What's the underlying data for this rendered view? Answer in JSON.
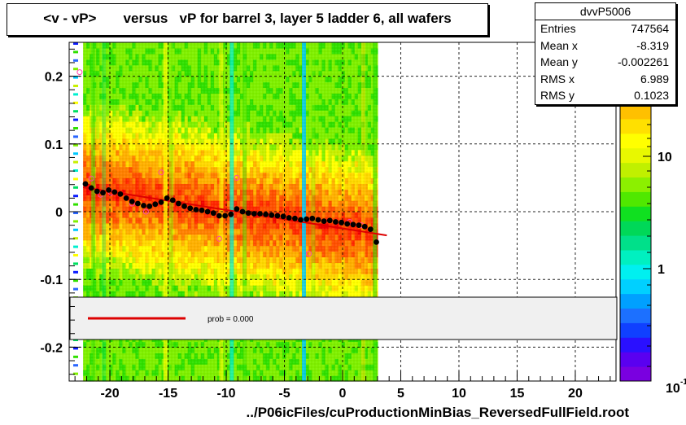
{
  "title": "<v - vP>       versus   vP for barrel 3, layer 5 ladder 6, all wafers",
  "stats": {
    "name": "dvvP5006",
    "rows": [
      {
        "label": "Entries",
        "value": "747564"
      },
      {
        "label": "Mean x",
        "value": "-8.319"
      },
      {
        "label": "Mean y",
        "value": "-0.002261"
      },
      {
        "label": "RMS x",
        "value": "6.989"
      },
      {
        "label": "RMS y",
        "value": "0.1023"
      }
    ]
  },
  "fit_legend": {
    "text": "prob = 0.000",
    "line_color": "#dd0000"
  },
  "colors": {
    "fit": "#dd0000",
    "profile": "#000000",
    "open_markers": "#ff44aa",
    "grid": "#000000"
  },
  "chart_data": {
    "type": "heatmap",
    "title": "<v - vP>       versus   vP for barrel 3, layer 5 ladder 6, all wafers",
    "xlabel": "../P06icFiles/cuProductionMinBias_ReversedFullField.root",
    "ylabel": "",
    "xlim": [
      -23.5,
      23.5
    ],
    "ylim": [
      -0.25,
      0.25
    ],
    "x_ticks": [
      -20,
      -15,
      -10,
      -5,
      0,
      5,
      10,
      15,
      20
    ],
    "y_ticks": [
      -0.2,
      -0.1,
      0,
      0.1,
      0.2
    ],
    "y_tick_labels": [
      "-0.2",
      "-0.1",
      "0",
      "0.1",
      "0.2"
    ],
    "grid": true,
    "filled_x_range": [
      -22.3,
      3.0
    ],
    "colorbar": {
      "scale": "log",
      "tick_labels": [
        "1",
        "10"
      ],
      "bottom_label": "10",
      "bottom_label_exp": "-1"
    },
    "profile_points": {
      "x": [
        -22.1,
        -21.6,
        -21.1,
        -20.6,
        -20.1,
        -19.6,
        -19.1,
        -18.6,
        -18.1,
        -17.6,
        -17.1,
        -16.6,
        -16.1,
        -15.6,
        -15.1,
        -14.6,
        -14.1,
        -13.6,
        -13.1,
        -12.6,
        -12.1,
        -11.6,
        -11.1,
        -10.6,
        -10.1,
        -9.6,
        -9.1,
        -8.6,
        -8.1,
        -7.6,
        -7.1,
        -6.6,
        -6.1,
        -5.6,
        -5.1,
        -4.6,
        -4.1,
        -3.6,
        -3.1,
        -2.6,
        -2.1,
        -1.6,
        -1.1,
        -0.6,
        -0.1,
        0.4,
        0.9,
        1.4,
        1.9,
        2.4,
        2.9
      ],
      "y": [
        0.041,
        0.035,
        0.03,
        0.028,
        0.032,
        0.029,
        0.026,
        0.02,
        0.015,
        0.012,
        0.009,
        0.008,
        0.011,
        0.014,
        0.02,
        0.017,
        0.012,
        0.008,
        0.005,
        0.003,
        0.002,
        0.0,
        -0.002,
        -0.006,
        -0.006,
        -0.004,
        0.004,
        0.0,
        -0.002,
        -0.003,
        -0.003,
        -0.004,
        -0.005,
        -0.006,
        -0.007,
        -0.009,
        -0.01,
        -0.012,
        -0.011,
        -0.01,
        -0.012,
        -0.014,
        -0.013,
        -0.015,
        -0.016,
        -0.018,
        -0.019,
        -0.02,
        -0.022,
        -0.026,
        -0.045
      ]
    },
    "open_points": {
      "x": [
        -22.6,
        -21.6,
        -20.8,
        -19.9,
        -18.1,
        -16.9,
        -15.6,
        -10.6,
        -9.1,
        -2.9,
        0.6,
        1.6
      ],
      "y": [
        0.206,
        0.049,
        0.025,
        0.028,
        0.012,
        0.0,
        0.058,
        -0.04,
        0.05,
        -0.062,
        -0.015,
        -0.02
      ]
    },
    "fit_line": {
      "x": [
        -22.3,
        3.8
      ],
      "y": [
        0.036,
        -0.035
      ]
    }
  }
}
